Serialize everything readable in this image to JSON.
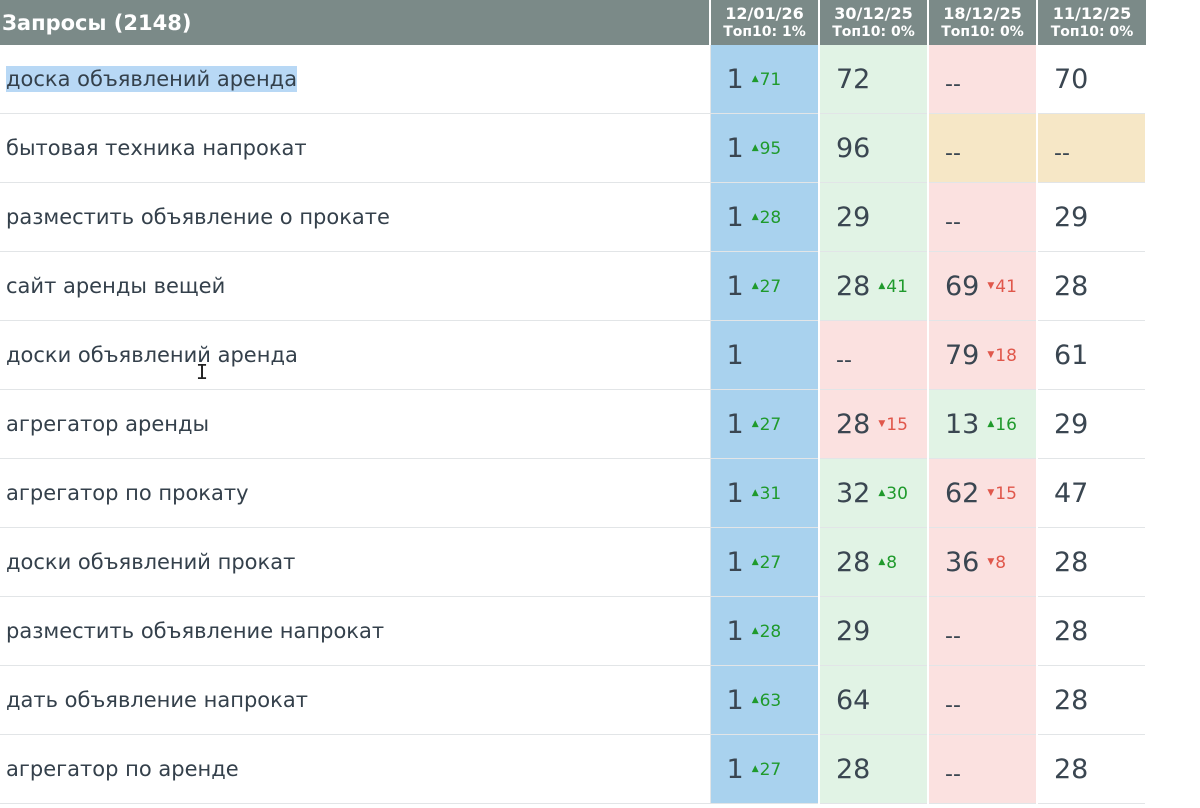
{
  "header": {
    "title": "Запросы (2148)",
    "dates": [
      {
        "date": "12/01/26",
        "top": "Топ10: 1%"
      },
      {
        "date": "30/12/25",
        "top": "Топ10: 0%"
      },
      {
        "date": "18/12/25",
        "top": "Топ10: 0%"
      },
      {
        "date": "11/12/25",
        "top": "Топ10: 0%"
      }
    ]
  },
  "colors": {
    "header_bg": "#7b8a88",
    "blue": "#a9d2ee",
    "green": "#e1f3e5",
    "red": "#fbe1e0",
    "yellow": "#f6e7c6",
    "white": "#ffffff",
    "delta_up": "#1f9a2c",
    "delta_down": "#e0574b",
    "selection": "#b8d8f5"
  },
  "rows": [
    {
      "query": "доска объявлений аренда",
      "selected": true,
      "cells": [
        {
          "value": "1",
          "delta": "71",
          "dir": "up",
          "bg": "blue"
        },
        {
          "value": "72",
          "delta": "",
          "dir": "",
          "bg": "green"
        },
        {
          "value": "--",
          "delta": "",
          "dir": "",
          "bg": "red"
        },
        {
          "value": "70",
          "delta": "",
          "dir": "",
          "bg": "white"
        }
      ]
    },
    {
      "query": "бытовая техника напрокат",
      "selected": false,
      "cells": [
        {
          "value": "1",
          "delta": "95",
          "dir": "up",
          "bg": "blue"
        },
        {
          "value": "96",
          "delta": "",
          "dir": "",
          "bg": "green"
        },
        {
          "value": "--",
          "delta": "",
          "dir": "",
          "bg": "yellow"
        },
        {
          "value": "--",
          "delta": "",
          "dir": "",
          "bg": "yellow"
        }
      ]
    },
    {
      "query": "разместить объявление о прокате",
      "selected": false,
      "cells": [
        {
          "value": "1",
          "delta": "28",
          "dir": "up",
          "bg": "blue"
        },
        {
          "value": "29",
          "delta": "",
          "dir": "",
          "bg": "green"
        },
        {
          "value": "--",
          "delta": "",
          "dir": "",
          "bg": "red"
        },
        {
          "value": "29",
          "delta": "",
          "dir": "",
          "bg": "white"
        }
      ]
    },
    {
      "query": "сайт аренды вещей",
      "selected": false,
      "cells": [
        {
          "value": "1",
          "delta": "27",
          "dir": "up",
          "bg": "blue"
        },
        {
          "value": "28",
          "delta": "41",
          "dir": "up",
          "bg": "green"
        },
        {
          "value": "69",
          "delta": "41",
          "dir": "down",
          "bg": "red"
        },
        {
          "value": "28",
          "delta": "",
          "dir": "",
          "bg": "white"
        }
      ]
    },
    {
      "query": "доски объявлений аренда",
      "selected": false,
      "cells": [
        {
          "value": "1",
          "delta": "",
          "dir": "",
          "bg": "blue"
        },
        {
          "value": "--",
          "delta": "",
          "dir": "",
          "bg": "red"
        },
        {
          "value": "79",
          "delta": "18",
          "dir": "down",
          "bg": "red"
        },
        {
          "value": "61",
          "delta": "",
          "dir": "",
          "bg": "white"
        }
      ]
    },
    {
      "query": "агрегатор аренды",
      "selected": false,
      "cells": [
        {
          "value": "1",
          "delta": "27",
          "dir": "up",
          "bg": "blue"
        },
        {
          "value": "28",
          "delta": "15",
          "dir": "down",
          "bg": "red"
        },
        {
          "value": "13",
          "delta": "16",
          "dir": "up",
          "bg": "green"
        },
        {
          "value": "29",
          "delta": "",
          "dir": "",
          "bg": "white"
        }
      ]
    },
    {
      "query": "агрегатор по прокату",
      "selected": false,
      "cells": [
        {
          "value": "1",
          "delta": "31",
          "dir": "up",
          "bg": "blue"
        },
        {
          "value": "32",
          "delta": "30",
          "dir": "up",
          "bg": "green"
        },
        {
          "value": "62",
          "delta": "15",
          "dir": "down",
          "bg": "red"
        },
        {
          "value": "47",
          "delta": "",
          "dir": "",
          "bg": "white"
        }
      ]
    },
    {
      "query": "доски объявлений прокат",
      "selected": false,
      "cells": [
        {
          "value": "1",
          "delta": "27",
          "dir": "up",
          "bg": "blue"
        },
        {
          "value": "28",
          "delta": "8",
          "dir": "up",
          "bg": "green"
        },
        {
          "value": "36",
          "delta": "8",
          "dir": "down",
          "bg": "red"
        },
        {
          "value": "28",
          "delta": "",
          "dir": "",
          "bg": "white"
        }
      ]
    },
    {
      "query": "разместить объявление напрокат",
      "selected": false,
      "cells": [
        {
          "value": "1",
          "delta": "28",
          "dir": "up",
          "bg": "blue"
        },
        {
          "value": "29",
          "delta": "",
          "dir": "",
          "bg": "green"
        },
        {
          "value": "--",
          "delta": "",
          "dir": "",
          "bg": "red"
        },
        {
          "value": "28",
          "delta": "",
          "dir": "",
          "bg": "white"
        }
      ]
    },
    {
      "query": "дать объявление напрокат",
      "selected": false,
      "cells": [
        {
          "value": "1",
          "delta": "63",
          "dir": "up",
          "bg": "blue"
        },
        {
          "value": "64",
          "delta": "",
          "dir": "",
          "bg": "green"
        },
        {
          "value": "--",
          "delta": "",
          "dir": "",
          "bg": "red"
        },
        {
          "value": "28",
          "delta": "",
          "dir": "",
          "bg": "white"
        }
      ]
    },
    {
      "query": "агрегатор по аренде",
      "selected": false,
      "cells": [
        {
          "value": "1",
          "delta": "27",
          "dir": "up",
          "bg": "blue"
        },
        {
          "value": "28",
          "delta": "",
          "dir": "",
          "bg": "green"
        },
        {
          "value": "--",
          "delta": "",
          "dir": "",
          "bg": "red"
        },
        {
          "value": "28",
          "delta": "",
          "dir": "",
          "bg": "white"
        }
      ]
    }
  ]
}
